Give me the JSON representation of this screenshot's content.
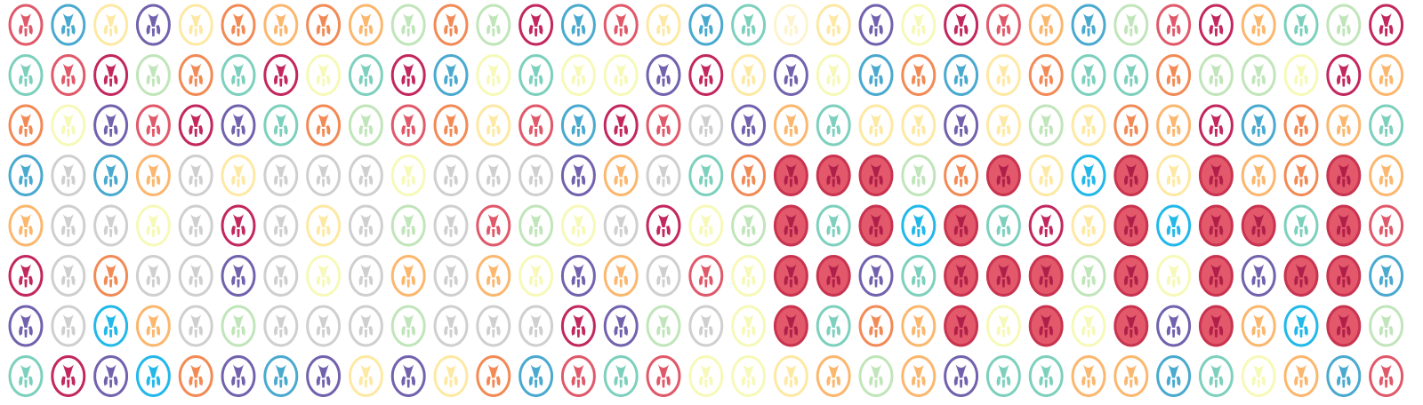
{
  "diagram": {
    "type": "glyph-matrix",
    "glyph": "brain-axial-slice-icon",
    "rows": 8,
    "cols": 33,
    "palette": {
      "A": "#e0596a",
      "B": "#4aa9cf",
      "C": "#fde9a3",
      "D": "#7262ad",
      "E": "#fbb76e",
      "F": "#f28a55",
      "G": "#c1e5ba",
      "H": "#7dd0bd",
      "I": "#c2275e",
      "J": "#f6f9b8",
      "K": "#cfcfcf",
      "L": "#fdf4cf",
      "M": "#22b8ea"
    },
    "filled_color": "#e3586a",
    "rows_data": [
      [
        "A",
        "B",
        "C",
        "D",
        "C",
        "F",
        "E",
        "F",
        "E",
        "G",
        "F",
        "G",
        "I",
        "B",
        "A",
        "C",
        "B",
        "H",
        "L",
        "C",
        "D",
        "J",
        "I",
        "A",
        "E",
        "B",
        "G",
        "A",
        "I",
        "E",
        "H",
        "G",
        "I"
      ],
      [
        "H",
        "A",
        "I",
        "G",
        "F",
        "H",
        "I",
        "J",
        "H",
        "I",
        "B",
        "J",
        "H",
        "J",
        "J",
        "D",
        "I",
        "C",
        "D",
        "J",
        "B",
        "F",
        "B",
        "C",
        "F",
        "H",
        "H",
        "F",
        "G",
        "G",
        "J",
        "I",
        "E"
      ],
      [
        "F",
        "J",
        "D",
        "A",
        "I",
        "D",
        "H",
        "F",
        "G",
        "A",
        "F",
        "C",
        "A",
        "B",
        "I",
        "A",
        "K",
        "D",
        "E",
        "H",
        "C",
        "C",
        "D",
        "C",
        "G",
        "C",
        "F",
        "E",
        "I",
        "B",
        "F",
        "E",
        "H"
      ],
      [
        "B",
        "K",
        "B",
        "E",
        "K",
        "C",
        "K",
        "K",
        "K",
        "J",
        "K",
        "K",
        "K",
        "D",
        "E",
        "K",
        "H",
        "F",
        "A*",
        "A*",
        "A*",
        "G",
        "F",
        "A*",
        "C",
        "M",
        "A*",
        "C",
        "A*",
        "E",
        "F",
        "A*",
        "E"
      ],
      [
        "E",
        "K",
        "K",
        "J",
        "K",
        "I",
        "K",
        "C",
        "K",
        "G",
        "K",
        "A",
        "G",
        "J",
        "K",
        "I",
        "J",
        "G",
        "A*",
        "H",
        "A*",
        "M",
        "A*",
        "H",
        "I",
        "C",
        "A*",
        "M",
        "A*",
        "A*",
        "H",
        "A*",
        "A"
      ],
      [
        "I",
        "K",
        "F",
        "K",
        "K",
        "D",
        "K",
        "J",
        "K",
        "E",
        "K",
        "E",
        "J",
        "D",
        "E",
        "K",
        "A",
        "J",
        "A*",
        "A*",
        "D",
        "H",
        "A*",
        "A*",
        "A*",
        "G",
        "A*",
        "J",
        "A*",
        "D",
        "A*",
        "A*",
        "B"
      ],
      [
        "D",
        "K",
        "M",
        "E",
        "K",
        "G",
        "K",
        "K",
        "K",
        "G",
        "K",
        "K",
        "K",
        "I",
        "D",
        "G",
        "K",
        "J",
        "A*",
        "H",
        "F",
        "E",
        "A*",
        "J",
        "A*",
        "J",
        "A*",
        "D",
        "A*",
        "E",
        "M",
        "A*",
        "G"
      ],
      [
        "H",
        "I",
        "D",
        "M",
        "F",
        "D",
        "B",
        "D",
        "C",
        "D",
        "C",
        "F",
        "B",
        "A",
        "H",
        "A",
        "J",
        "J",
        "C",
        "E",
        "G",
        "E",
        "D",
        "H",
        "H",
        "E",
        "E",
        "B",
        "H",
        "J",
        "E",
        "B",
        "A"
      ]
    ]
  }
}
